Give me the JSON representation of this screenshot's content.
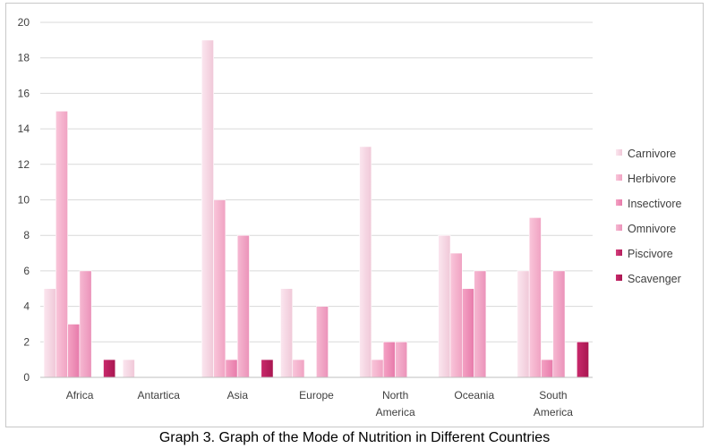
{
  "caption": "Graph 3. Graph of the Mode of Nutrition in Different Countries",
  "chart_data": {
    "type": "bar",
    "title": "",
    "xlabel": "",
    "ylabel": "",
    "ylim": [
      0,
      20
    ],
    "ytick_step": 2,
    "grid": true,
    "legend_position": "right",
    "categories": [
      "Africa",
      "Antartica",
      "Asia",
      "Europe",
      "North America",
      "Oceania",
      "South America"
    ],
    "category_lines": [
      [
        "Africa"
      ],
      [
        "Antartica"
      ],
      [
        "Asia"
      ],
      [
        "Europe"
      ],
      [
        "North",
        "America"
      ],
      [
        "Oceania"
      ],
      [
        "South",
        "America"
      ]
    ],
    "series": [
      {
        "name": "Carnivore",
        "color_light": "#fbe6ef",
        "color_dark": "#f0c8d8",
        "values": [
          5,
          1,
          19,
          5,
          13,
          8,
          6
        ]
      },
      {
        "name": "Herbivore",
        "color_light": "#f9c6da",
        "color_dark": "#f0a2c2",
        "values": [
          15,
          0,
          10,
          1,
          1,
          7,
          9
        ]
      },
      {
        "name": "Insectivore",
        "color_light": "#f4a3c4",
        "color_dark": "#e77aaa",
        "values": [
          3,
          0,
          1,
          0,
          2,
          5,
          1
        ]
      },
      {
        "name": "Omnivore",
        "color_light": "#f6b9d2",
        "color_dark": "#eb92b9",
        "values": [
          6,
          0,
          8,
          4,
          2,
          6,
          6
        ]
      },
      {
        "name": "Piscivore",
        "color_light": "#d43f7c",
        "color_dark": "#b51e5d",
        "values": [
          0,
          0,
          0,
          0,
          0,
          0,
          0
        ]
      },
      {
        "name": "Scavenger",
        "color_light": "#c92a6c",
        "color_dark": "#a81650",
        "values": [
          1,
          0,
          1,
          0,
          0,
          0,
          2
        ]
      }
    ]
  }
}
